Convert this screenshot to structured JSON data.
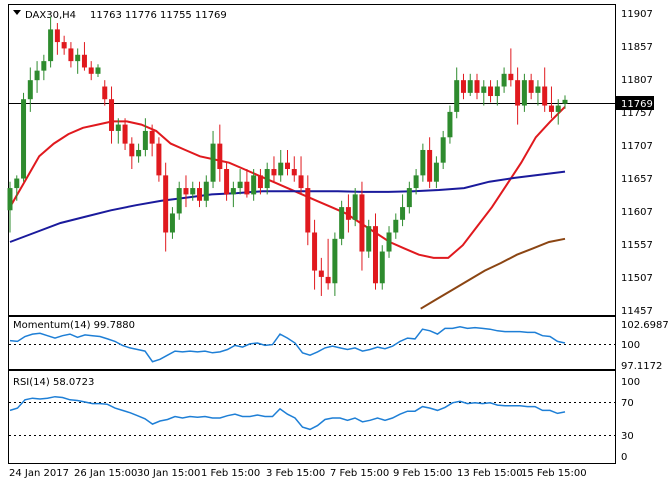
{
  "header": {
    "symbol": "DAX30,H4",
    "ohlc": "11763 11776 11755 11769"
  },
  "colors": {
    "bull": "#2e8b2e",
    "bear": "#e0191e",
    "ma20": "#e0191e",
    "ma100": "#1a1a9c",
    "ma200": "#8b4513",
    "momentum": "#1e7fd6",
    "rsi": "#1e7fd6",
    "grid": "#000000"
  },
  "chart_data": [
    {
      "type": "candlestick",
      "title": "DAX30,H4",
      "ylim": [
        11430,
        11920
      ],
      "price_ticks": [
        "11907",
        "11857",
        "11807",
        "11757",
        "11707",
        "11657",
        "11607",
        "11557",
        "11507",
        "11457"
      ],
      "current_price": "11769",
      "x_ticks": [
        "24 Jan 2017",
        "26 Jan 15:00",
        "30 Jan 15:00",
        "1 Feb 15:00",
        "3 Feb 15:00",
        "7 Feb 15:00",
        "9 Feb 15:00",
        "13 Feb 15:00",
        "15 Feb 15:00"
      ],
      "candles": [
        [
          11595,
          11640,
          11560,
          11630
        ],
        [
          11630,
          11650,
          11610,
          11645
        ],
        [
          11645,
          11780,
          11640,
          11770
        ],
        [
          11770,
          11820,
          11750,
          11800
        ],
        [
          11800,
          11830,
          11780,
          11815
        ],
        [
          11815,
          11840,
          11800,
          11830
        ],
        [
          11830,
          11900,
          11820,
          11880
        ],
        [
          11880,
          11890,
          11840,
          11860
        ],
        [
          11860,
          11870,
          11840,
          11850
        ],
        [
          11850,
          11860,
          11820,
          11830
        ],
        [
          11830,
          11850,
          11810,
          11840
        ],
        [
          11840,
          11860,
          11815,
          11820
        ],
        [
          11820,
          11830,
          11800,
          11810
        ],
        [
          11810,
          11825,
          11805,
          11820
        ],
        [
          11790,
          11800,
          11760,
          11770
        ],
        [
          11770,
          11790,
          11700,
          11720
        ],
        [
          11720,
          11740,
          11700,
          11730
        ],
        [
          11730,
          11740,
          11690,
          11700
        ],
        [
          11700,
          11710,
          11660,
          11680
        ],
        [
          11680,
          11700,
          11670,
          11690
        ],
        [
          11690,
          11740,
          11680,
          11720
        ],
        [
          11720,
          11730,
          11680,
          11700
        ],
        [
          11700,
          11710,
          11640,
          11650
        ],
        [
          11650,
          11670,
          11530,
          11560
        ],
        [
          11560,
          11600,
          11550,
          11590
        ],
        [
          11590,
          11640,
          11580,
          11630
        ],
        [
          11630,
          11650,
          11600,
          11620
        ],
        [
          11620,
          11640,
          11610,
          11630
        ],
        [
          11630,
          11640,
          11600,
          11610
        ],
        [
          11610,
          11650,
          11600,
          11640
        ],
        [
          11640,
          11720,
          11630,
          11700
        ],
        [
          11700,
          11730,
          11640,
          11660
        ],
        [
          11660,
          11670,
          11610,
          11620
        ],
        [
          11620,
          11640,
          11600,
          11630
        ],
        [
          11630,
          11660,
          11620,
          11640
        ],
        [
          11640,
          11660,
          11615,
          11620
        ],
        [
          11620,
          11660,
          11610,
          11650
        ],
        [
          11650,
          11660,
          11620,
          11630
        ],
        [
          11630,
          11670,
          11620,
          11660
        ],
        [
          11660,
          11680,
          11640,
          11650
        ],
        [
          11650,
          11690,
          11640,
          11670
        ],
        [
          11670,
          11690,
          11650,
          11660
        ],
        [
          11660,
          11680,
          11640,
          11650
        ],
        [
          11650,
          11680,
          11620,
          11630
        ],
        [
          11630,
          11650,
          11540,
          11560
        ],
        [
          11560,
          11580,
          11470,
          11500
        ],
        [
          11500,
          11520,
          11460,
          11490
        ],
        [
          11490,
          11550,
          11470,
          11480
        ],
        [
          11480,
          11560,
          11460,
          11550
        ],
        [
          11550,
          11610,
          11540,
          11600
        ],
        [
          11600,
          11620,
          11560,
          11580
        ],
        [
          11580,
          11630,
          11570,
          11620
        ],
        [
          11620,
          11640,
          11500,
          11530
        ],
        [
          11530,
          11580,
          11520,
          11570
        ],
        [
          11570,
          11590,
          11470,
          11480
        ],
        [
          11480,
          11540,
          11470,
          11530
        ],
        [
          11530,
          11570,
          11520,
          11560
        ],
        [
          11560,
          11590,
          11550,
          11580
        ],
        [
          11580,
          11620,
          11570,
          11600
        ],
        [
          11600,
          11640,
          11590,
          11630
        ],
        [
          11630,
          11660,
          11620,
          11650
        ],
        [
          11650,
          11700,
          11640,
          11690
        ],
        [
          11690,
          11710,
          11630,
          11640
        ],
        [
          11640,
          11680,
          11630,
          11670
        ],
        [
          11670,
          11720,
          11660,
          11710
        ],
        [
          11710,
          11760,
          11700,
          11750
        ],
        [
          11750,
          11820,
          11740,
          11800
        ],
        [
          11800,
          11810,
          11770,
          11780
        ],
        [
          11780,
          11810,
          11775,
          11800
        ],
        [
          11800,
          11810,
          11770,
          11780
        ],
        [
          11780,
          11800,
          11760,
          11790
        ],
        [
          11790,
          11800,
          11765,
          11775
        ],
        [
          11775,
          11800,
          11760,
          11790
        ],
        [
          11790,
          11820,
          11780,
          11810
        ],
        [
          11810,
          11850,
          11790,
          11800
        ],
        [
          11800,
          11820,
          11730,
          11760
        ],
        [
          11760,
          11810,
          11750,
          11800
        ],
        [
          11800,
          11810,
          11770,
          11780
        ],
        [
          11780,
          11800,
          11760,
          11790
        ],
        [
          11790,
          11820,
          11750,
          11760
        ],
        [
          11760,
          11790,
          11740,
          11750
        ],
        [
          11750,
          11770,
          11730,
          11760
        ],
        [
          11763,
          11776,
          11755,
          11769
        ]
      ],
      "ma20": [
        11600,
        11640,
        11680,
        11700,
        11715,
        11725,
        11730,
        11735,
        11735,
        11730,
        11720,
        11700,
        11690,
        11680,
        11675,
        11670,
        11660,
        11650,
        11640,
        11630,
        11620,
        11610,
        11600,
        11590,
        11575,
        11560,
        11545,
        11535,
        11525,
        11520,
        11520,
        11540,
        11570,
        11600,
        11635,
        11670,
        11710,
        11735,
        11758
      ],
      "ma100": [
        11545,
        11560,
        11575,
        11585,
        11595,
        11603,
        11610,
        11615,
        11620,
        11622,
        11625,
        11625,
        11625,
        11625,
        11624,
        11624,
        11625,
        11627,
        11630,
        11640,
        11646,
        11651,
        11656
      ],
      "ma200": [
        11440,
        11455,
        11470,
        11485,
        11500,
        11512,
        11525,
        11535,
        11545,
        11550
      ]
    },
    {
      "type": "line",
      "title": "Momentum(14) 99.7880",
      "ylim": [
        96.6,
        103.0
      ],
      "y_ticks": [
        "102.6987",
        "100",
        "97.1172"
      ],
      "values": [
        100.1,
        100.0,
        100.6,
        100.9,
        101.0,
        100.7,
        100.4,
        100.7,
        100.9,
        100.5,
        100.8,
        100.7,
        100.6,
        100.3,
        100.0,
        99.5,
        99.2,
        99.0,
        98.8,
        97.5,
        97.8,
        98.3,
        98.8,
        98.7,
        98.8,
        98.7,
        98.8,
        98.6,
        98.7,
        99.0,
        99.5,
        99.3,
        99.7,
        99.8,
        99.5,
        99.6,
        100.9,
        100.4,
        99.8,
        98.6,
        98.3,
        98.7,
        99.2,
        99.4,
        99.2,
        99.0,
        99.2,
        98.8,
        99.0,
        99.3,
        99.1,
        99.4,
        100.0,
        100.4,
        100.3,
        101.5,
        101.3,
        100.9,
        101.6,
        101.6,
        101.8,
        101.6,
        101.7,
        101.6,
        101.5,
        101.3,
        101.2,
        101.2,
        101.2,
        101.1,
        101.1,
        100.7,
        100.6,
        100.0,
        99.8
      ]
    },
    {
      "type": "line",
      "title": "RSI(14) 58.0723",
      "ylim": [
        0,
        100
      ],
      "y_ticks": [
        "100",
        "70",
        "30",
        "0"
      ],
      "levels": [
        70,
        30
      ],
      "values": [
        60,
        63,
        74,
        76,
        75,
        76,
        78,
        77,
        74,
        73,
        71,
        69,
        69,
        68,
        63,
        60,
        57,
        53,
        49,
        42,
        46,
        48,
        52,
        50,
        52,
        51,
        52,
        50,
        50,
        53,
        55,
        52,
        52,
        54,
        52,
        52,
        62,
        55,
        50,
        38,
        35,
        40,
        48,
        50,
        50,
        47,
        50,
        45,
        47,
        50,
        47,
        50,
        55,
        59,
        59,
        65,
        63,
        60,
        64,
        70,
        72,
        69,
        70,
        69,
        70,
        67,
        66,
        66,
        66,
        65,
        65,
        60,
        60,
        56,
        58
      ]
    }
  ]
}
